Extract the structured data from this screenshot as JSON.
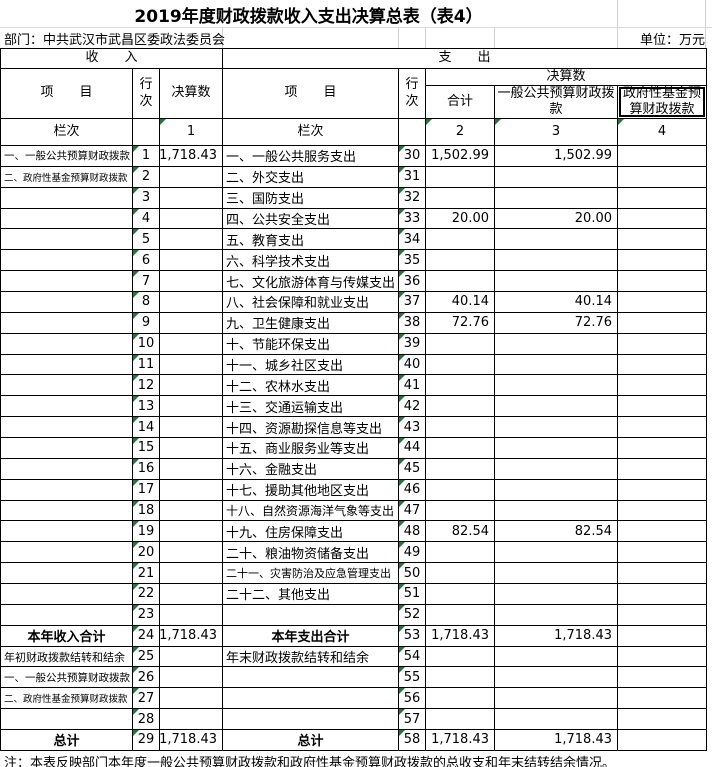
{
  "title": "2019年度财政拨款收入支出决算总表（表4）",
  "department": "部门：中共武汉市武昌区委政法委员会",
  "unit": "单位：万元",
  "header": {
    "income_section": "收　　入",
    "expense_section": "支　　出",
    "item": "项　　目",
    "row_no": "行次",
    "amount": "决算数",
    "amount_group": "决算数",
    "total": "合计",
    "general": "一般公共预算财政拨款",
    "gov_fund": "政府性基金预算财政拨款",
    "column_label": "栏次",
    "col_nums": [
      "1",
      "2",
      "3",
      "4"
    ]
  },
  "rows": [
    {
      "income_item": "一、一般公共预算财政拨款",
      "income_row": "1",
      "income_amount": "1,718.43",
      "expense_item": "一、一般公共服务支出",
      "expense_row": "30",
      "expense_total": "1,502.99",
      "expense_general": "1,502.99",
      "expense_govfund": ""
    },
    {
      "income_item": "二、政府性基金预算财政拨款",
      "income_row": "2",
      "income_amount": "",
      "expense_item": "二、外交支出",
      "expense_row": "31",
      "expense_total": "",
      "expense_general": "",
      "expense_govfund": ""
    },
    {
      "income_item": "",
      "income_row": "3",
      "income_amount": "",
      "expense_item": "三、国防支出",
      "expense_row": "32",
      "expense_total": "",
      "expense_general": "",
      "expense_govfund": ""
    },
    {
      "income_item": "",
      "income_row": "4",
      "income_amount": "",
      "expense_item": "四、公共安全支出",
      "expense_row": "33",
      "expense_total": "20.00",
      "expense_general": "20.00",
      "expense_govfund": ""
    },
    {
      "income_item": "",
      "income_row": "5",
      "income_amount": "",
      "expense_item": "五、教育支出",
      "expense_row": "34",
      "expense_total": "",
      "expense_general": "",
      "expense_govfund": ""
    },
    {
      "income_item": "",
      "income_row": "6",
      "income_amount": "",
      "expense_item": "六、科学技术支出",
      "expense_row": "35",
      "expense_total": "",
      "expense_general": "",
      "expense_govfund": ""
    },
    {
      "income_item": "",
      "income_row": "7",
      "income_amount": "",
      "expense_item": "七、文化旅游体育与传媒支出",
      "expense_row": "36",
      "expense_total": "",
      "expense_general": "",
      "expense_govfund": ""
    },
    {
      "income_item": "",
      "income_row": "8",
      "income_amount": "",
      "expense_item": "八、社会保障和就业支出",
      "expense_row": "37",
      "expense_total": "40.14",
      "expense_general": "40.14",
      "expense_govfund": ""
    },
    {
      "income_item": "",
      "income_row": "9",
      "income_amount": "",
      "expense_item": "九、卫生健康支出",
      "expense_row": "38",
      "expense_total": "72.76",
      "expense_general": "72.76",
      "expense_govfund": ""
    },
    {
      "income_item": "",
      "income_row": "10",
      "income_amount": "",
      "expense_item": "十、节能环保支出",
      "expense_row": "39",
      "expense_total": "",
      "expense_general": "",
      "expense_govfund": ""
    },
    {
      "income_item": "",
      "income_row": "11",
      "income_amount": "",
      "expense_item": "十一、城乡社区支出",
      "expense_row": "40",
      "expense_total": "",
      "expense_general": "",
      "expense_govfund": ""
    },
    {
      "income_item": "",
      "income_row": "12",
      "income_amount": "",
      "expense_item": "十二、农林水支出",
      "expense_row": "41",
      "expense_total": "",
      "expense_general": "",
      "expense_govfund": ""
    },
    {
      "income_item": "",
      "income_row": "13",
      "income_amount": "",
      "expense_item": "十三、交通运输支出",
      "expense_row": "42",
      "expense_total": "",
      "expense_general": "",
      "expense_govfund": ""
    },
    {
      "income_item": "",
      "income_row": "14",
      "income_amount": "",
      "expense_item": "十四、资源勘探信息等支出",
      "expense_row": "43",
      "expense_total": "",
      "expense_general": "",
      "expense_govfund": ""
    },
    {
      "income_item": "",
      "income_row": "15",
      "income_amount": "",
      "expense_item": "十五、商业服务业等支出",
      "expense_row": "44",
      "expense_total": "",
      "expense_general": "",
      "expense_govfund": ""
    },
    {
      "income_item": "",
      "income_row": "16",
      "income_amount": "",
      "expense_item": "十六、金融支出",
      "expense_row": "45",
      "expense_total": "",
      "expense_general": "",
      "expense_govfund": ""
    },
    {
      "income_item": "",
      "income_row": "17",
      "income_amount": "",
      "expense_item": "十七、援助其他地区支出",
      "expense_row": "46",
      "expense_total": "",
      "expense_general": "",
      "expense_govfund": ""
    },
    {
      "income_item": "",
      "income_row": "18",
      "income_amount": "",
      "expense_item": "十八、自然资源海洋气象等支出",
      "expense_row": "47",
      "expense_total": "",
      "expense_general": "",
      "expense_govfund": ""
    },
    {
      "income_item": "",
      "income_row": "19",
      "income_amount": "",
      "expense_item": "十九、住房保障支出",
      "expense_row": "48",
      "expense_total": "82.54",
      "expense_general": "82.54",
      "expense_govfund": ""
    },
    {
      "income_item": "",
      "income_row": "20",
      "income_amount": "",
      "expense_item": "二十、粮油物资储备支出",
      "expense_row": "49",
      "expense_total": "",
      "expense_general": "",
      "expense_govfund": ""
    },
    {
      "income_item": "",
      "income_row": "21",
      "income_amount": "",
      "expense_item": "二十一、灾害防治及应急管理支出",
      "expense_row": "50",
      "expense_total": "",
      "expense_general": "",
      "expense_govfund": ""
    },
    {
      "income_item": "",
      "income_row": "22",
      "income_amount": "",
      "expense_item": "二十二、其他支出",
      "expense_row": "51",
      "expense_total": "",
      "expense_general": "",
      "expense_govfund": ""
    },
    {
      "income_item": "",
      "income_row": "23",
      "income_amount": "",
      "expense_item": "",
      "expense_row": "52",
      "expense_total": "",
      "expense_general": "",
      "expense_govfund": ""
    },
    {
      "income_item": "本年收入合计",
      "income_row": "24",
      "income_amount": "1,718.43",
      "expense_item": "本年支出合计",
      "expense_row": "53",
      "expense_total": "1,718.43",
      "expense_general": "1,718.43",
      "expense_govfund": ""
    },
    {
      "income_item": "年初财政拨款结转和结余",
      "income_row": "25",
      "income_amount": "",
      "expense_item": "年末财政拨款结转和结余",
      "expense_row": "54",
      "expense_total": "",
      "expense_general": "",
      "expense_govfund": ""
    },
    {
      "income_item": "一、一般公共预算财政拨款",
      "income_row": "26",
      "income_amount": "",
      "expense_item": "",
      "expense_row": "55",
      "expense_total": "",
      "expense_general": "",
      "expense_govfund": ""
    },
    {
      "income_item": "二、政府性基金预算财政拨款",
      "income_row": "27",
      "income_amount": "",
      "expense_item": "",
      "expense_row": "56",
      "expense_total": "",
      "expense_general": "",
      "expense_govfund": ""
    },
    {
      "income_item": "",
      "income_row": "28",
      "income_amount": "",
      "expense_item": "",
      "expense_row": "57",
      "expense_total": "",
      "expense_general": "",
      "expense_govfund": ""
    },
    {
      "income_item": "总计",
      "income_row": "29",
      "income_amount": "1,718.43",
      "expense_item": "总计",
      "expense_row": "58",
      "expense_total": "1,718.43",
      "expense_general": "1,718.43",
      "expense_govfund": ""
    }
  ],
  "note": "注：本表反映部门本年度一般公共预算财政拨款和政府性基金预算财政拨款的总收支和年末结转结余情况。",
  "colors": {
    "border": "#000000",
    "gridline": "#d0d0d0",
    "flag_triangle": "#1b7a34",
    "background": "#ffffff"
  }
}
